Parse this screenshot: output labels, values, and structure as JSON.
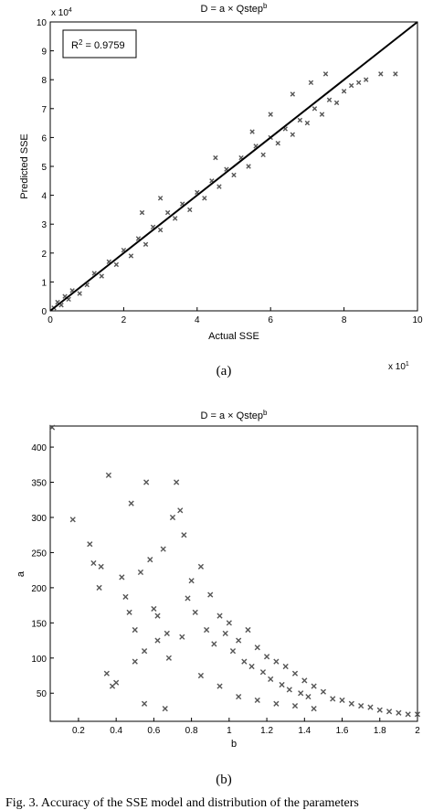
{
  "chart_data": [
    {
      "type": "scatter",
      "title_base": "D = a × Qstep",
      "title_sup": "b",
      "xlabel": "Actual SSE",
      "ylabel": "Predicted SSE",
      "xlim": [
        0,
        10
      ],
      "ylim": [
        0,
        10
      ],
      "x_multiplier": "x 10",
      "x_multiplier_exp": "1",
      "y_multiplier": "x 10",
      "y_multiplier_exp": "4",
      "xticks": [
        0,
        2,
        4,
        6,
        8,
        10
      ],
      "yticks": [
        0,
        1,
        2,
        3,
        4,
        5,
        6,
        7,
        8,
        9,
        10
      ],
      "annotation_base": "R",
      "annotation_sup": "2",
      "annotation_rest": " = 0.9759",
      "fit_line": {
        "x": [
          0,
          10
        ],
        "y": [
          0,
          10
        ]
      },
      "marker": "x",
      "colors": {
        "points": "#555555",
        "line": "#000000"
      },
      "points": [
        [
          0.1,
          0.1
        ],
        [
          0.2,
          0.3
        ],
        [
          0.3,
          0.2
        ],
        [
          0.4,
          0.5
        ],
        [
          0.5,
          0.4
        ],
        [
          0.6,
          0.7
        ],
        [
          0.8,
          0.6
        ],
        [
          1.0,
          0.9
        ],
        [
          1.2,
          1.3
        ],
        [
          1.4,
          1.2
        ],
        [
          1.6,
          1.7
        ],
        [
          1.8,
          1.6
        ],
        [
          2.0,
          2.1
        ],
        [
          2.2,
          1.9
        ],
        [
          2.4,
          2.5
        ],
        [
          2.6,
          2.3
        ],
        [
          2.8,
          2.9
        ],
        [
          3.0,
          2.8
        ],
        [
          3.2,
          3.4
        ],
        [
          3.4,
          3.2
        ],
        [
          3.6,
          3.7
        ],
        [
          3.8,
          3.5
        ],
        [
          4.0,
          4.1
        ],
        [
          4.2,
          3.9
        ],
        [
          4.4,
          4.5
        ],
        [
          4.6,
          4.3
        ],
        [
          4.8,
          4.9
        ],
        [
          5.0,
          4.7
        ],
        [
          5.2,
          5.3
        ],
        [
          5.4,
          5.0
        ],
        [
          5.6,
          5.7
        ],
        [
          5.8,
          5.4
        ],
        [
          6.0,
          6.0
        ],
        [
          6.2,
          5.8
        ],
        [
          6.4,
          6.3
        ],
        [
          6.6,
          6.1
        ],
        [
          6.8,
          6.6
        ],
        [
          7.0,
          6.5
        ],
        [
          7.2,
          7.0
        ],
        [
          7.4,
          6.8
        ],
        [
          7.6,
          7.3
        ],
        [
          7.8,
          7.2
        ],
        [
          8.0,
          7.6
        ],
        [
          8.2,
          7.8
        ],
        [
          8.4,
          7.9
        ],
        [
          8.6,
          8.0
        ],
        [
          9.0,
          8.2
        ],
        [
          9.4,
          8.2
        ],
        [
          4.5,
          5.3
        ],
        [
          5.5,
          6.2
        ],
        [
          6.0,
          6.8
        ],
        [
          6.6,
          7.5
        ],
        [
          7.1,
          7.9
        ],
        [
          7.5,
          8.2
        ],
        [
          3.0,
          3.9
        ],
        [
          2.5,
          3.4
        ]
      ]
    },
    {
      "type": "scatter",
      "title_base": "D = a × Qstep",
      "title_sup": "b",
      "xlabel": "b",
      "ylabel": "a",
      "xlim": [
        0.05,
        2
      ],
      "ylim": [
        10,
        430
      ],
      "xticks": [
        0.2,
        0.4,
        0.6,
        0.8,
        1,
        1.2,
        1.4,
        1.6,
        1.8,
        2
      ],
      "yticks": [
        50,
        100,
        150,
        200,
        250,
        300,
        350,
        400
      ],
      "marker": "x",
      "colors": {
        "points": "#555555"
      },
      "points": [
        [
          0.06,
          428
        ],
        [
          0.17,
          297
        ],
        [
          0.26,
          262
        ],
        [
          0.28,
          235
        ],
        [
          0.31,
          200
        ],
        [
          0.32,
          230
        ],
        [
          0.35,
          78
        ],
        [
          0.36,
          360
        ],
        [
          0.38,
          60
        ],
        [
          0.4,
          65
        ],
        [
          0.43,
          215
        ],
        [
          0.45,
          187
        ],
        [
          0.47,
          165
        ],
        [
          0.48,
          320
        ],
        [
          0.5,
          140
        ],
        [
          0.53,
          222
        ],
        [
          0.55,
          35
        ],
        [
          0.56,
          350
        ],
        [
          0.58,
          240
        ],
        [
          0.6,
          170
        ],
        [
          0.62,
          160
        ],
        [
          0.65,
          255
        ],
        [
          0.66,
          28
        ],
        [
          0.67,
          135
        ],
        [
          0.7,
          300
        ],
        [
          0.72,
          350
        ],
        [
          0.74,
          310
        ],
        [
          0.76,
          275
        ],
        [
          0.78,
          185
        ],
        [
          0.8,
          210
        ],
        [
          0.82,
          165
        ],
        [
          0.85,
          230
        ],
        [
          0.88,
          140
        ],
        [
          0.9,
          190
        ],
        [
          0.92,
          120
        ],
        [
          0.95,
          160
        ],
        [
          0.98,
          135
        ],
        [
          1.0,
          150
        ],
        [
          1.02,
          110
        ],
        [
          1.05,
          125
        ],
        [
          1.08,
          95
        ],
        [
          1.1,
          140
        ],
        [
          1.12,
          88
        ],
        [
          1.15,
          115
        ],
        [
          1.18,
          80
        ],
        [
          1.2,
          102
        ],
        [
          1.22,
          70
        ],
        [
          1.25,
          95
        ],
        [
          1.28,
          62
        ],
        [
          1.3,
          88
        ],
        [
          1.32,
          55
        ],
        [
          1.35,
          78
        ],
        [
          1.38,
          50
        ],
        [
          1.4,
          68
        ],
        [
          1.42,
          45
        ],
        [
          1.45,
          60
        ],
        [
          1.5,
          52
        ],
        [
          1.55,
          42
        ],
        [
          1.6,
          40
        ],
        [
          1.65,
          35
        ],
        [
          1.7,
          32
        ],
        [
          1.75,
          30
        ],
        [
          1.8,
          26
        ],
        [
          1.85,
          24
        ],
        [
          1.9,
          22
        ],
        [
          1.95,
          20
        ],
        [
          2.0,
          20
        ],
        [
          0.5,
          95
        ],
        [
          0.55,
          110
        ],
        [
          0.62,
          125
        ],
        [
          0.68,
          100
        ],
        [
          0.75,
          130
        ],
        [
          0.85,
          75
        ],
        [
          0.95,
          60
        ],
        [
          1.05,
          45
        ],
        [
          1.15,
          40
        ],
        [
          1.25,
          35
        ],
        [
          1.35,
          32
        ],
        [
          1.45,
          28
        ]
      ]
    }
  ],
  "captions": [
    "(a)",
    "(b)"
  ],
  "footer_text": "Fig. 3. Accuracy of the SSE model and distribution of the parameters"
}
